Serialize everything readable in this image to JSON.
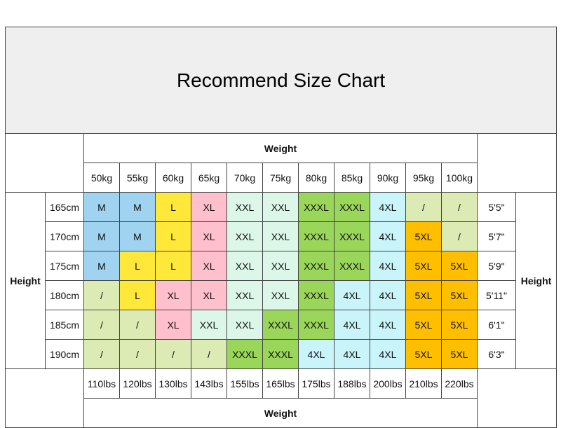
{
  "title": "Recommend Size Chart",
  "weight_label": "Weight",
  "height_label": "Height",
  "weights_kg": [
    "50kg",
    "55kg",
    "60kg",
    "65kg",
    "70kg",
    "75kg",
    "80kg",
    "85kg",
    "90kg",
    "95kg",
    "100kg"
  ],
  "weights_lbs": [
    "110lbs",
    "120lbs",
    "130lbs",
    "143lbs",
    "155lbs",
    "165lbs",
    "175lbs",
    "188lbs",
    "200lbs",
    "210lbs",
    "220lbs"
  ],
  "rows": [
    {
      "cm": "165cm",
      "ft": "5'5\"",
      "sizes": [
        "M",
        "M",
        "L",
        "XL",
        "XXL",
        "XXL",
        "XXXL",
        "XXXL",
        "4XL",
        "/",
        "/"
      ]
    },
    {
      "cm": "170cm",
      "ft": "5'7\"",
      "sizes": [
        "M",
        "M",
        "L",
        "XL",
        "XXL",
        "XXL",
        "XXXL",
        "XXXL",
        "4XL",
        "5XL",
        "/"
      ]
    },
    {
      "cm": "175cm",
      "ft": "5'9\"",
      "sizes": [
        "M",
        "L",
        "L",
        "XL",
        "XXL",
        "XXL",
        "XXXL",
        "XXXL",
        "4XL",
        "5XL",
        "5XL"
      ]
    },
    {
      "cm": "180cm",
      "ft": "5'11\"",
      "sizes": [
        "/",
        "L",
        "XL",
        "XL",
        "XXL",
        "XXL",
        "XXXL",
        "4XL",
        "4XL",
        "5XL",
        "5XL"
      ]
    },
    {
      "cm": "185cm",
      "ft": "6'1\"",
      "sizes": [
        "/",
        "/",
        "XL",
        "XXL",
        "XXL",
        "XXXL",
        "XXXL",
        "4XL",
        "4XL",
        "5XL",
        "5XL"
      ]
    },
    {
      "cm": "190cm",
      "ft": "6'3\"",
      "sizes": [
        "/",
        "/",
        "/",
        "/",
        "XXXL",
        "XXXL",
        "4XL",
        "4XL",
        "4XL",
        "5XL",
        "5XL"
      ]
    }
  ],
  "size_colors": {
    "M": "#9fd3f0",
    "L": "#ffe83a",
    "XL": "#ffbfcc",
    "XXL": "#dcf7e8",
    "XXXL": "#9ad65a",
    "4XL": "#c8f4fa",
    "5XL": "#ffbf00",
    "/": "#dcebb4"
  }
}
